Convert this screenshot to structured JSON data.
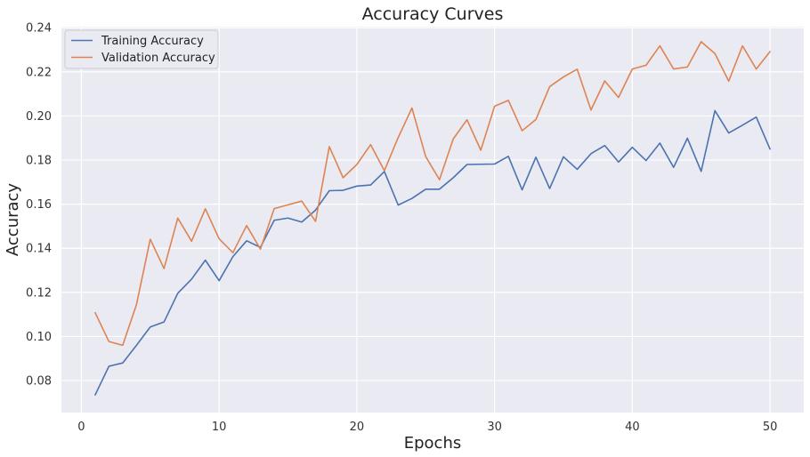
{
  "chart_data": {
    "type": "line",
    "title": "Accuracy Curves",
    "xlabel": "Epochs",
    "ylabel": "Accuracy",
    "xlim": [
      -1.45,
      52.45
    ],
    "ylim": [
      0.0655,
      0.2405
    ],
    "xticks": [
      0,
      10,
      20,
      30,
      40,
      50
    ],
    "yticks": [
      0.08,
      0.1,
      0.12,
      0.14,
      0.16,
      0.18,
      0.2,
      0.22,
      0.24
    ],
    "ytick_labels": [
      "0.08",
      "0.10",
      "0.12",
      "0.14",
      "0.16",
      "0.18",
      "0.20",
      "0.22",
      "0.24"
    ],
    "grid": true,
    "legend_position": "top-left",
    "background_color": "#eaeaf2",
    "grid_color": "#ffffff",
    "x": [
      1,
      2,
      3,
      4,
      5,
      6,
      7,
      8,
      9,
      10,
      11,
      12,
      13,
      14,
      15,
      16,
      17,
      18,
      19,
      20,
      21,
      22,
      23,
      24,
      25,
      26,
      27,
      28,
      29,
      30,
      31,
      32,
      33,
      34,
      35,
      36,
      37,
      38,
      39,
      40,
      41,
      42,
      43,
      44,
      45,
      46,
      47,
      48,
      49,
      50
    ],
    "series": [
      {
        "name": "Training Accuracy",
        "color": "#4c72b0",
        "values": [
          0.0735,
          0.0865,
          0.088,
          0.096,
          0.1043,
          0.1066,
          0.1196,
          0.126,
          0.1346,
          0.1253,
          0.1362,
          0.1434,
          0.1404,
          0.1527,
          0.1537,
          0.1519,
          0.1573,
          0.1661,
          0.1663,
          0.1682,
          0.1687,
          0.1748,
          0.1596,
          0.1626,
          0.1668,
          0.1668,
          0.172,
          0.178,
          0.1781,
          0.1782,
          0.1817,
          0.1665,
          0.1813,
          0.1671,
          0.1815,
          0.1758,
          0.1829,
          0.1866,
          0.1791,
          0.1858,
          0.1798,
          0.1877,
          0.1767,
          0.1899,
          0.1749,
          0.2024,
          0.1923,
          0.1958,
          0.1995,
          0.185
        ]
      },
      {
        "name": "Validation Accuracy",
        "color": "#dd8452",
        "values": [
          0.1108,
          0.0977,
          0.096,
          0.1145,
          0.1441,
          0.1308,
          0.1537,
          0.1432,
          0.1579,
          0.1443,
          0.138,
          0.1503,
          0.1396,
          0.158,
          0.1597,
          0.1614,
          0.1522,
          0.1861,
          0.172,
          0.178,
          0.187,
          0.1752,
          0.1902,
          0.2036,
          0.1816,
          0.1711,
          0.1896,
          0.1983,
          0.1845,
          0.2044,
          0.2071,
          0.1933,
          0.1984,
          0.2133,
          0.2177,
          0.2212,
          0.2027,
          0.2159,
          0.2084,
          0.2213,
          0.223,
          0.2318,
          0.2213,
          0.2222,
          0.2337,
          0.2283,
          0.2158,
          0.2318,
          0.2213,
          0.2292
        ]
      }
    ]
  }
}
